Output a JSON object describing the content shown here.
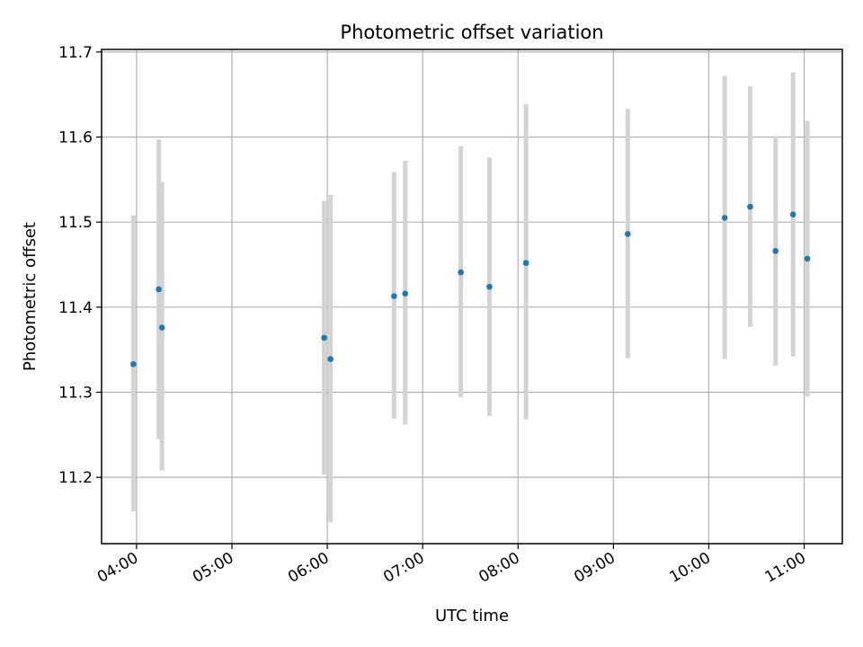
{
  "chart_data": {
    "type": "scatter",
    "title": "Photometric offset variation",
    "xlabel": "UTC time",
    "ylabel": "Photometric offset",
    "xlim": [
      "03:38",
      "11:24"
    ],
    "ylim": [
      11.122,
      11.703
    ],
    "x_ticks": [
      "04:00",
      "05:00",
      "06:00",
      "07:00",
      "08:00",
      "09:00",
      "10:00",
      "11:00"
    ],
    "y_ticks": [
      11.2,
      11.3,
      11.4,
      11.5,
      11.6,
      11.7
    ],
    "y_tick_labels": [
      "11.2",
      "11.3",
      "11.4",
      "11.5",
      "11.6",
      "11.7"
    ],
    "grid": true,
    "marker_color": "#1f77b4",
    "errorbar_color": "#d3d3d3",
    "points": [
      {
        "x": "03:58",
        "y": 11.333,
        "yerr_low": 11.16,
        "yerr_high": 11.508
      },
      {
        "x": "04:14",
        "y": 11.421,
        "yerr_low": 11.245,
        "yerr_high": 11.597
      },
      {
        "x": "04:16",
        "y": 11.376,
        "yerr_low": 11.208,
        "yerr_high": 11.547
      },
      {
        "x": "05:58",
        "y": 11.364,
        "yerr_low": 11.203,
        "yerr_high": 11.525
      },
      {
        "x": "06:02",
        "y": 11.339,
        "yerr_low": 11.147,
        "yerr_high": 11.532
      },
      {
        "x": "06:42",
        "y": 11.413,
        "yerr_low": 11.269,
        "yerr_high": 11.559
      },
      {
        "x": "06:49",
        "y": 11.416,
        "yerr_low": 11.262,
        "yerr_high": 11.572
      },
      {
        "x": "07:24",
        "y": 11.441,
        "yerr_low": 11.294,
        "yerr_high": 11.589
      },
      {
        "x": "07:42",
        "y": 11.424,
        "yerr_low": 11.272,
        "yerr_high": 11.576
      },
      {
        "x": "08:05",
        "y": 11.452,
        "yerr_low": 11.268,
        "yerr_high": 11.639
      },
      {
        "x": "09:09",
        "y": 11.486,
        "yerr_low": 11.34,
        "yerr_high": 11.633
      },
      {
        "x": "10:10",
        "y": 11.505,
        "yerr_low": 11.339,
        "yerr_high": 11.672
      },
      {
        "x": "10:26",
        "y": 11.518,
        "yerr_low": 11.377,
        "yerr_high": 11.66
      },
      {
        "x": "10:42",
        "y": 11.466,
        "yerr_low": 11.331,
        "yerr_high": 11.601
      },
      {
        "x": "10:53",
        "y": 11.509,
        "yerr_low": 11.342,
        "yerr_high": 11.676
      },
      {
        "x": "11:02",
        "y": 11.457,
        "yerr_low": 11.295,
        "yerr_high": 11.619
      }
    ]
  }
}
